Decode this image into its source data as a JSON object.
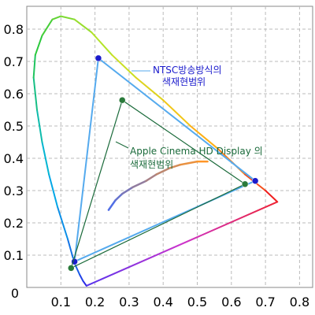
{
  "chart_data": {
    "type": "scatter",
    "title": "",
    "xlabel": "",
    "ylabel": "",
    "xlim": [
      0,
      0.8
    ],
    "ylim": [
      0,
      0.85
    ],
    "grid": true,
    "xticks": [
      "0.1",
      "0.2",
      "0.3",
      "0.4",
      "0.5",
      "0.6",
      "0.7",
      "0.8"
    ],
    "yticks": [
      "0",
      "0.1",
      "0.2",
      "0.3",
      "0.4",
      "0.5",
      "0.6",
      "0.7",
      "0.8"
    ],
    "spectral_locus": [
      [
        0.175,
        0.005
      ],
      [
        0.165,
        0.02
      ],
      [
        0.155,
        0.04
      ],
      [
        0.14,
        0.075
      ],
      [
        0.12,
        0.15
      ],
      [
        0.09,
        0.25
      ],
      [
        0.065,
        0.35
      ],
      [
        0.045,
        0.45
      ],
      [
        0.03,
        0.55
      ],
      [
        0.02,
        0.65
      ],
      [
        0.025,
        0.72
      ],
      [
        0.045,
        0.78
      ],
      [
        0.075,
        0.83
      ],
      [
        0.1,
        0.84
      ],
      [
        0.14,
        0.83
      ],
      [
        0.19,
        0.79
      ],
      [
        0.25,
        0.72
      ],
      [
        0.32,
        0.65
      ],
      [
        0.4,
        0.58
      ],
      [
        0.48,
        0.5
      ],
      [
        0.56,
        0.43
      ],
      [
        0.64,
        0.35
      ],
      [
        0.7,
        0.3
      ],
      [
        0.735,
        0.265
      ]
    ],
    "purple_line": [
      [
        0.735,
        0.265
      ],
      [
        0.175,
        0.005
      ]
    ],
    "planckian_locus": [
      [
        0.24,
        0.24
      ],
      [
        0.26,
        0.27
      ],
      [
        0.28,
        0.29
      ],
      [
        0.31,
        0.31
      ],
      [
        0.35,
        0.33
      ],
      [
        0.38,
        0.35
      ],
      [
        0.42,
        0.37
      ],
      [
        0.45,
        0.38
      ],
      [
        0.5,
        0.39
      ],
      [
        0.53,
        0.39
      ]
    ],
    "series": [
      {
        "name": "NTSC방송방식의 색재현범위",
        "color": "#55aaee",
        "point_color": "#1a1acc",
        "points": [
          [
            0.21,
            0.71
          ],
          [
            0.67,
            0.33
          ],
          [
            0.14,
            0.08
          ]
        ]
      },
      {
        "name": "Apple Cinema HD Display 의 색재현범위",
        "color": "#1a6a3a",
        "point_color": "#2a7a3a",
        "points": [
          [
            0.28,
            0.58
          ],
          [
            0.64,
            0.32
          ],
          [
            0.13,
            0.06
          ]
        ]
      }
    ],
    "annotations": {
      "ntsc": {
        "line1": "NTSC방송방식의",
        "line2": "색재현범위",
        "color": "#1a1acc"
      },
      "apple": {
        "line1": "Apple Cinema HD Display 의",
        "line2": "색재현범위",
        "color": "#1a6a3a"
      }
    }
  }
}
